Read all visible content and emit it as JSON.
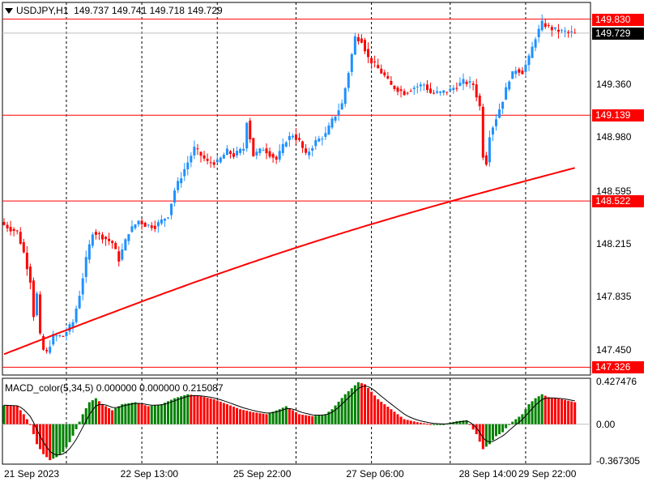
{
  "header": {
    "symbol": "USDJPY,H1",
    "ohlc": "149.737 149.741 149.718 149.729"
  },
  "macd_header": "MACD_color(5,34,5) 0.000000 0.000000 0.215087",
  "colors": {
    "bull": "#1e90ff",
    "bear": "#ff0000",
    "ma": "#ff0000",
    "hline": "#ff0000",
    "hist_up": "#008000",
    "hist_down": "#ff0000",
    "signal": "#000000",
    "grid": "#000000"
  },
  "price_levels": [
    {
      "id": "level-149830",
      "label": "149.830",
      "value": 149.83
    },
    {
      "id": "level-149139",
      "label": "149.139",
      "value": 149.139
    },
    {
      "id": "level-148522",
      "label": "148.522",
      "value": 148.522
    },
    {
      "id": "level-147326",
      "label": "147.326",
      "value": 147.326
    }
  ],
  "current_price": {
    "label": "149.729",
    "value": 149.729
  },
  "chart_data": [
    {
      "type": "candlestick",
      "title": "USDJPY,H1",
      "ylim": [
        147.27,
        149.95
      ],
      "yticks": [
        "149.360",
        "148.980",
        "148.595",
        "148.215",
        "147.835",
        "147.450"
      ],
      "ytick_values": [
        149.36,
        148.98,
        148.595,
        148.215,
        147.835,
        147.45
      ],
      "xticks": [
        "21 Sep 2023",
        "22 Sep 13:00",
        "25 Sep 22:00",
        "27 Sep 06:00",
        "28 Sep 14:00",
        "29 Sep 22:00"
      ],
      "xtick_bars": [
        0,
        33,
        65,
        97,
        129,
        161
      ],
      "bar_count": 175,
      "moving_average": {
        "start": 147.42,
        "end": 148.76
      },
      "anchors": [
        [
          0,
          148.35
        ],
        [
          2,
          148.32
        ],
        [
          4,
          148.3
        ],
        [
          6,
          148.15
        ],
        [
          8,
          147.95
        ],
        [
          9,
          147.7
        ],
        [
          10,
          147.85
        ],
        [
          11,
          147.55
        ],
        [
          12,
          147.45
        ],
        [
          13,
          147.43
        ],
        [
          15,
          147.55
        ],
        [
          18,
          147.55
        ],
        [
          21,
          147.65
        ],
        [
          23,
          147.85
        ],
        [
          25,
          148.1
        ],
        [
          27,
          148.3
        ],
        [
          29,
          148.28
        ],
        [
          31,
          148.25
        ],
        [
          33,
          148.22
        ],
        [
          35,
          148.1
        ],
        [
          38,
          148.3
        ],
        [
          41,
          148.38
        ],
        [
          43,
          148.35
        ],
        [
          46,
          148.34
        ],
        [
          50,
          148.42
        ],
        [
          52,
          148.6
        ],
        [
          55,
          148.75
        ],
        [
          58,
          148.9
        ],
        [
          62,
          148.8
        ],
        [
          65,
          148.8
        ],
        [
          68,
          148.88
        ],
        [
          70,
          148.85
        ],
        [
          73,
          148.9
        ],
        [
          74,
          149.1
        ],
        [
          76,
          148.85
        ],
        [
          79,
          148.9
        ],
        [
          83,
          148.82
        ],
        [
          86,
          148.96
        ],
        [
          88,
          149.0
        ],
        [
          90,
          148.95
        ],
        [
          92,
          148.85
        ],
        [
          95,
          148.95
        ],
        [
          98,
          149.0
        ],
        [
          100,
          149.1
        ],
        [
          103,
          149.22
        ],
        [
          105,
          149.45
        ],
        [
          107,
          149.7
        ],
        [
          109,
          149.68
        ],
        [
          111,
          149.55
        ],
        [
          113,
          149.5
        ],
        [
          116,
          149.42
        ],
        [
          118,
          149.35
        ],
        [
          122,
          149.3
        ],
        [
          125,
          149.34
        ],
        [
          128,
          149.36
        ],
        [
          130,
          149.3
        ],
        [
          133,
          149.3
        ],
        [
          136,
          149.32
        ],
        [
          140,
          149.38
        ],
        [
          143,
          149.36
        ],
        [
          145,
          149.2
        ],
        [
          146,
          148.85
        ],
        [
          147,
          148.8
        ],
        [
          148,
          149.0
        ],
        [
          150,
          149.12
        ],
        [
          152,
          149.25
        ],
        [
          154,
          149.4
        ],
        [
          156,
          149.47
        ],
        [
          158,
          149.45
        ],
        [
          160,
          149.55
        ],
        [
          162,
          149.7
        ],
        [
          164,
          149.8
        ],
        [
          167,
          149.76
        ],
        [
          170,
          149.74
        ],
        [
          174,
          149.729
        ]
      ]
    },
    {
      "type": "bar",
      "title": "MACD_color(5,34,5)",
      "ylim": [
        -0.4,
        0.46
      ],
      "yticks": [
        "0.427476",
        "0.00",
        "-0.367305"
      ],
      "ytick_values": [
        0.427476,
        0.0,
        -0.367305
      ],
      "anchors": [
        [
          0,
          0.19
        ],
        [
          4,
          0.18
        ],
        [
          6,
          0.1
        ],
        [
          8,
          0.0
        ],
        [
          10,
          -0.2
        ],
        [
          12,
          -0.3
        ],
        [
          14,
          -0.36
        ],
        [
          16,
          -0.33
        ],
        [
          18,
          -0.28
        ],
        [
          20,
          -0.18
        ],
        [
          22,
          -0.05
        ],
        [
          24,
          0.1
        ],
        [
          26,
          0.22
        ],
        [
          28,
          0.26
        ],
        [
          30,
          0.2
        ],
        [
          33,
          0.14
        ],
        [
          36,
          0.2
        ],
        [
          40,
          0.22
        ],
        [
          44,
          0.18
        ],
        [
          48,
          0.2
        ],
        [
          52,
          0.26
        ],
        [
          56,
          0.3
        ],
        [
          60,
          0.28
        ],
        [
          64,
          0.25
        ],
        [
          68,
          0.2
        ],
        [
          72,
          0.15
        ],
        [
          76,
          0.12
        ],
        [
          80,
          0.1
        ],
        [
          84,
          0.15
        ],
        [
          86,
          0.18
        ],
        [
          90,
          0.1
        ],
        [
          94,
          0.08
        ],
        [
          98,
          0.1
        ],
        [
          100,
          0.15
        ],
        [
          104,
          0.3
        ],
        [
          108,
          0.42
        ],
        [
          110,
          0.4
        ],
        [
          114,
          0.25
        ],
        [
          118,
          0.15
        ],
        [
          122,
          0.05
        ],
        [
          126,
          0.02
        ],
        [
          130,
          0.0
        ],
        [
          134,
          0.0
        ],
        [
          138,
          0.03
        ],
        [
          141,
          0.04
        ],
        [
          144,
          -0.1
        ],
        [
          146,
          -0.25
        ],
        [
          148,
          -0.2
        ],
        [
          150,
          -0.12
        ],
        [
          152,
          -0.08
        ],
        [
          154,
          0.0
        ],
        [
          156,
          0.05
        ],
        [
          158,
          0.1
        ],
        [
          160,
          0.2
        ],
        [
          162,
          0.26
        ],
        [
          164,
          0.3
        ],
        [
          166,
          0.27
        ],
        [
          170,
          0.25
        ],
        [
          174,
          0.22
        ]
      ]
    }
  ]
}
